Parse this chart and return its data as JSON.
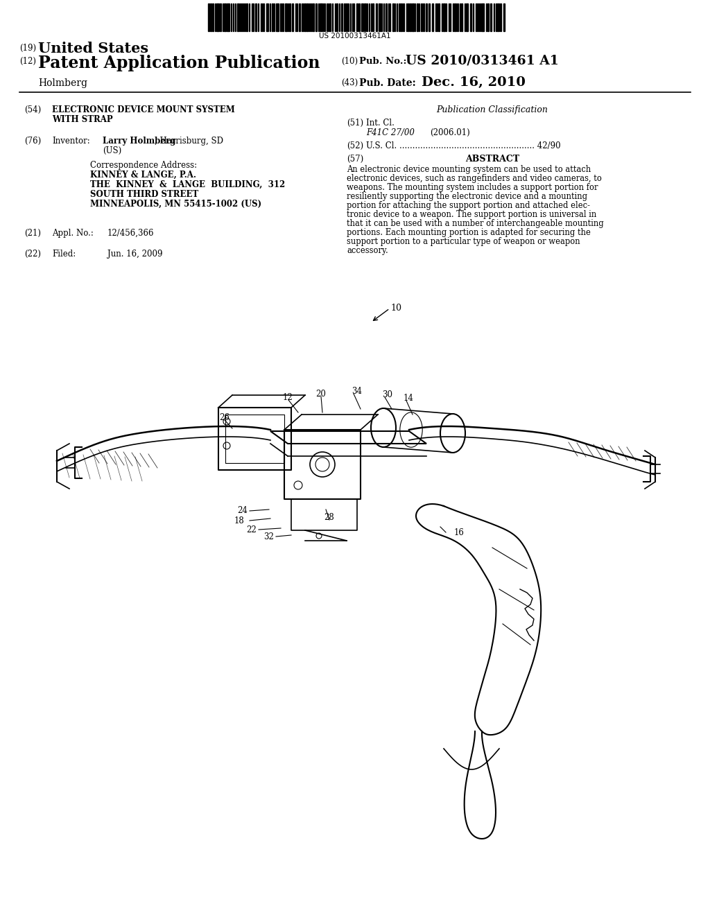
{
  "background_color": "#ffffff",
  "barcode_text": "US 20100313461A1",
  "header": {
    "line1_num": "(19)",
    "line1_text": "United States",
    "line2_num": "(12)",
    "line2_text": "Patent Application Publication",
    "line2_right_num": "(10)",
    "line2_right_label": "Pub. No.:",
    "line2_right_val": "US 2010/0313461 A1",
    "line3_left": "Holmberg",
    "line3_right_num": "(43)",
    "line3_right_label": "Pub. Date:",
    "line3_right_val": "Dec. 16, 2010"
  },
  "left_col": {
    "field54_num": "(54)",
    "field54_line1": "ELECTRONIC DEVICE MOUNT SYSTEM",
    "field54_line2": "WITH STRAP",
    "field76_num": "(76)",
    "field76_label": "Inventor:",
    "field76_name": "Larry Holmberg",
    "field76_loc": ", Harrisburg, SD",
    "field76_country": "(US)",
    "corr_label": "Correspondence Address:",
    "corr_line1": "KINNEY & LANGE, P.A.",
    "corr_line2": "THE  KINNEY  &  LANGE  BUILDING,  312",
    "corr_line3": "SOUTH THIRD STREET",
    "corr_line4": "MINNEAPOLIS, MN 55415-1002 (US)",
    "field21_num": "(21)",
    "field21_label": "Appl. No.:",
    "field21_val": "12/456,366",
    "field22_num": "(22)",
    "field22_label": "Filed:",
    "field22_val": "Jun. 16, 2009"
  },
  "right_col": {
    "pub_class_title": "Publication Classification",
    "field51_num": "(51)",
    "field51_label": "Int. Cl.",
    "field51_val": "F41C 27/00",
    "field51_year": "(2006.01)",
    "field52_num": "(52)",
    "field52_label": "U.S. Cl.",
    "field52_val": "42/90",
    "field57_num": "(57)",
    "field57_label": "ABSTRACT",
    "abstract_lines": [
      "An electronic device mounting system can be used to attach",
      "electronic devices, such as rangefinders and video cameras, to",
      "weapons. The mounting system includes a support portion for",
      "resiliently supporting the electronic device and a mounting",
      "portion for attaching the support portion and attached elec-",
      "tronic device to a weapon. The support portion is universal in",
      "that it can be used with a number of interchangeable mounting",
      "portions. Each mounting portion is adapted for securing the",
      "support portion to a particular type of weapon or weapon",
      "accessory."
    ]
  }
}
